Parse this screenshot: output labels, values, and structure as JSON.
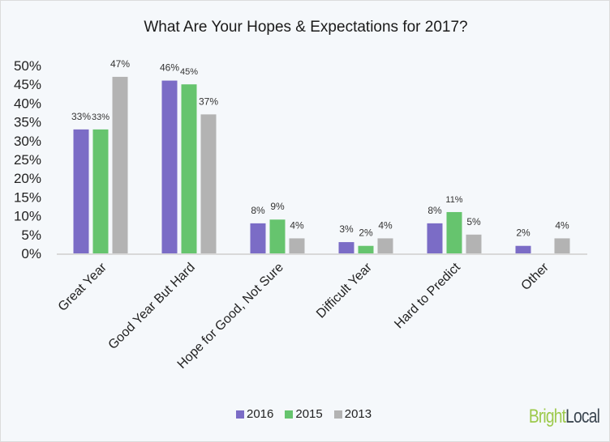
{
  "chart_data": {
    "type": "bar",
    "title": "What Are Your Hopes & Expectations for 2017?",
    "categories": [
      "Great Year",
      "Good Year But Hard",
      "Hope for Good, Not Sure",
      "Difficult Year",
      "Hard to Predict",
      "Other"
    ],
    "series": [
      {
        "name": "2016",
        "color": "#7b6cc6",
        "values": [
          33,
          46,
          8,
          3,
          8,
          2
        ]
      },
      {
        "name": "2015",
        "color": "#66c46e",
        "values": [
          33,
          45,
          9,
          2,
          11,
          null
        ]
      },
      {
        "name": "2013",
        "color": "#b3b3b3",
        "values": [
          47,
          37,
          4,
          4,
          5,
          4
        ]
      }
    ],
    "ylim": [
      0,
      50
    ],
    "yticks": [
      "0%",
      "5%",
      "10%",
      "15%",
      "20%",
      "25%",
      "30%",
      "35%",
      "40%",
      "45%",
      "50%"
    ],
    "grid": false,
    "legend": "bottom"
  },
  "logo": {
    "part1": "Bright",
    "part2": "Local",
    "color1": "#9cc94a",
    "color2": "#3b4650"
  }
}
